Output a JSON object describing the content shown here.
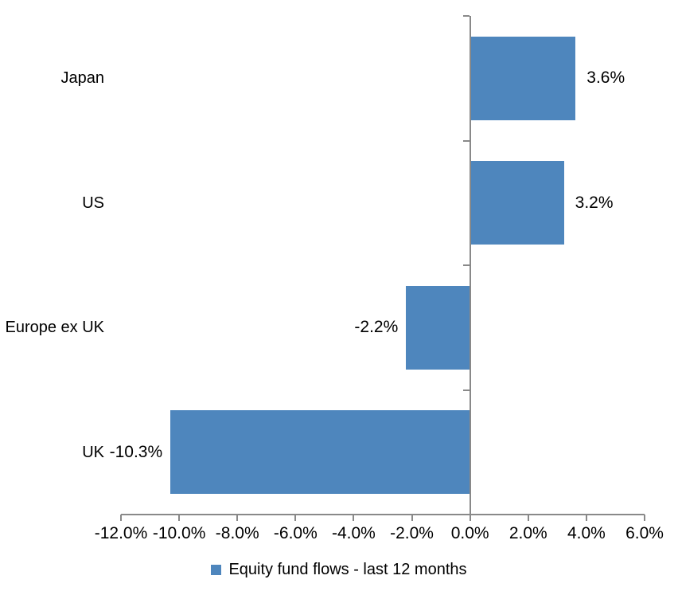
{
  "chart_data": {
    "type": "bar",
    "orientation": "horizontal",
    "categories": [
      "Japan",
      "US",
      "Europe ex UK",
      "UK"
    ],
    "values": [
      3.6,
      3.2,
      -2.2,
      -10.3
    ],
    "value_labels": [
      "3.6%",
      "3.2%",
      "-2.2%",
      "-10.3%"
    ],
    "series_name": "Equity fund flows - last 12 months",
    "x_ticks": [
      -12,
      -10,
      -8,
      -6,
      -4,
      -2,
      0,
      2,
      4,
      6
    ],
    "x_tick_labels": [
      "-12.0%",
      "-10.0%",
      "-8.0%",
      "-6.0%",
      "-4.0%",
      "-2.0%",
      "0.0%",
      "2.0%",
      "4.0%",
      "6.0%"
    ],
    "xlim": [
      -12,
      6
    ],
    "title": "",
    "xlabel": "",
    "ylabel": "",
    "grid": false,
    "legend_position": "bottom",
    "bar_color": "#4E86BD",
    "axis_color": "#898989",
    "text_color": "#000000"
  }
}
